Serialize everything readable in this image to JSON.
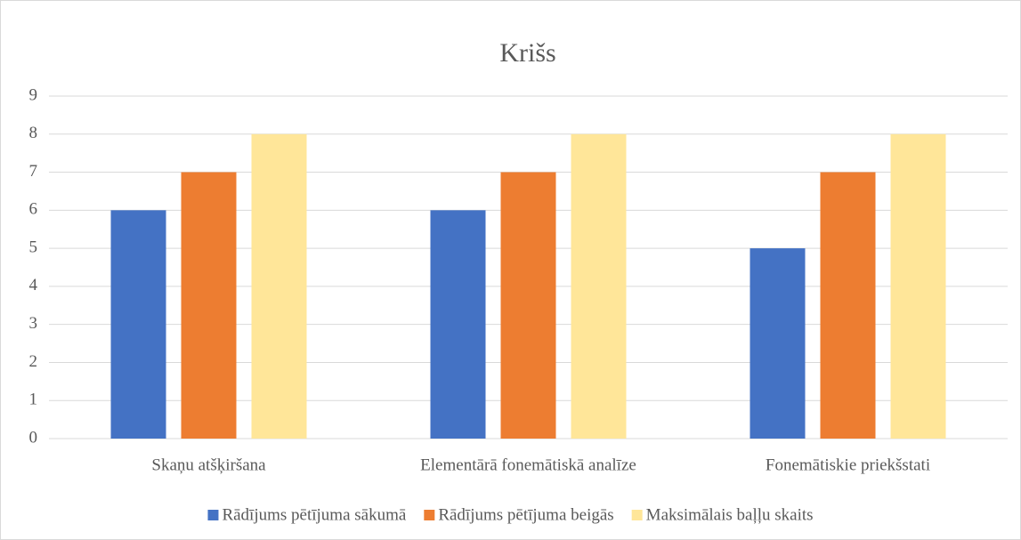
{
  "chart_data": {
    "type": "bar",
    "title": "Krišs",
    "categories": [
      "Skaņu atšķiršana",
      "Elementārā fonemātiskā analīze",
      "Fonemātiskie priekšstati"
    ],
    "series": [
      {
        "name": "Rādījums pētījuma sākumā",
        "color": "#4472c4",
        "values": [
          6,
          6,
          5
        ]
      },
      {
        "name": "Rādījums pētījuma beigās",
        "color": "#ed7d31",
        "values": [
          7,
          7,
          7
        ]
      },
      {
        "name": "Maksimālais baļļu skaits",
        "color": "#ffe699",
        "values": [
          8,
          8,
          8
        ]
      }
    ],
    "ylim": [
      0,
      9
    ],
    "yticks": [
      0,
      1,
      2,
      3,
      4,
      5,
      6,
      7,
      8,
      9
    ],
    "grid": true,
    "legend": "bottom"
  }
}
